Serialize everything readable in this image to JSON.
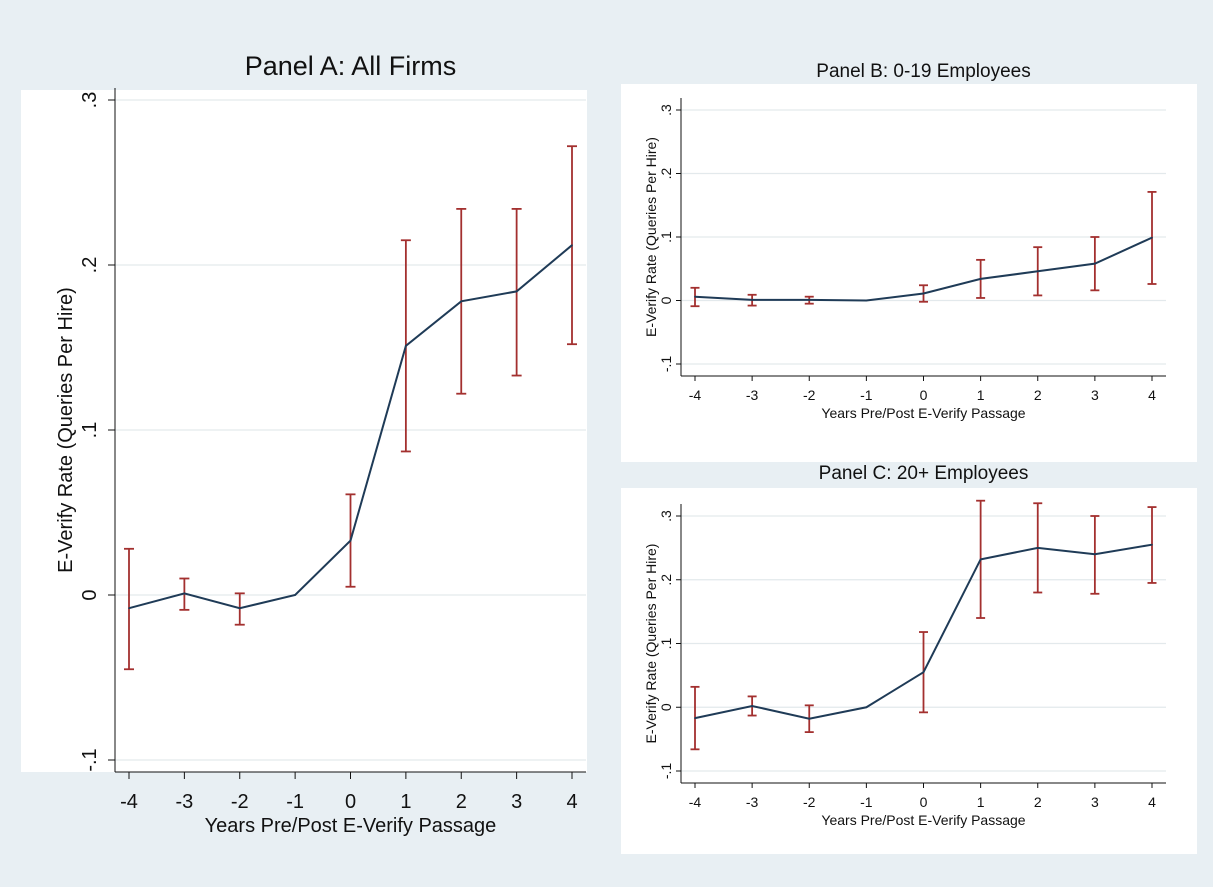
{
  "chart_data": [
    {
      "type": "line",
      "title": "Panel A: All Firms",
      "xlabel": "Years Pre/Post E-Verify Passage",
      "ylabel": "E-Verify Rate (Queries Per Hire)",
      "x": [
        -4,
        -3,
        -2,
        -1,
        0,
        1,
        2,
        3,
        4
      ],
      "xticks": [
        "-4",
        "-3",
        "-2",
        "-1",
        "0",
        "1",
        "2",
        "3",
        "4"
      ],
      "ylim": [
        -0.1,
        0.3
      ],
      "yticks": [
        -0.1,
        0,
        0.1,
        0.2,
        0.3
      ],
      "ytick_labels": [
        "-.1",
        "0",
        ".1",
        ".2",
        ".3"
      ],
      "grid": true,
      "series": [
        {
          "values": [
            -0.008,
            0.001,
            -0.008,
            0.0,
            0.033,
            0.151,
            0.178,
            0.184,
            0.212
          ],
          "ci_low": [
            -0.045,
            -0.009,
            -0.018,
            0.0,
            0.005,
            0.087,
            0.122,
            0.133,
            0.152
          ],
          "ci_high": [
            0.028,
            0.01,
            0.001,
            0.0,
            0.061,
            0.215,
            0.234,
            0.234,
            0.272
          ],
          "color": "#1f3b57",
          "ci_color": "#a3302f"
        }
      ]
    },
    {
      "type": "line",
      "title": "Panel B: 0-19 Employees",
      "xlabel": "Years Pre/Post E-Verify Passage",
      "ylabel": "E-Verify Rate (Queries Per Hire)",
      "x": [
        -4,
        -3,
        -2,
        -1,
        0,
        1,
        2,
        3,
        4
      ],
      "xticks": [
        "-4",
        "-3",
        "-2",
        "-1",
        "0",
        "1",
        "2",
        "3",
        "4"
      ],
      "ylim": [
        -0.1,
        0.3
      ],
      "yticks": [
        -0.1,
        0,
        0.1,
        0.2,
        0.3
      ],
      "ytick_labels": [
        "-.1",
        "0",
        ".1",
        ".2",
        ".3"
      ],
      "grid": true,
      "series": [
        {
          "values": [
            0.006,
            0.001,
            0.001,
            0.0,
            0.011,
            0.034,
            0.046,
            0.058,
            0.099
          ],
          "ci_low": [
            -0.009,
            -0.008,
            -0.005,
            0.0,
            -0.002,
            0.004,
            0.008,
            0.016,
            0.026
          ],
          "ci_high": [
            0.02,
            0.009,
            0.006,
            0.0,
            0.024,
            0.064,
            0.084,
            0.1,
            0.171
          ],
          "color": "#1f3b57",
          "ci_color": "#a3302f"
        }
      ]
    },
    {
      "type": "line",
      "title": "Panel C: 20+ Employees",
      "xlabel": "Years Pre/Post E-Verify Passage",
      "ylabel": "E-Verify Rate (Queries Per Hire)",
      "x": [
        -4,
        -3,
        -2,
        -1,
        0,
        1,
        2,
        3,
        4
      ],
      "xticks": [
        "-4",
        "-3",
        "-2",
        "-1",
        "0",
        "1",
        "2",
        "3",
        "4"
      ],
      "ylim": [
        -0.1,
        0.3
      ],
      "yticks": [
        -0.1,
        0,
        0.1,
        0.2,
        0.3
      ],
      "ytick_labels": [
        "-.1",
        "0",
        ".1",
        ".2",
        ".3"
      ],
      "grid": true,
      "series": [
        {
          "values": [
            -0.017,
            0.002,
            -0.018,
            0.0,
            0.055,
            0.232,
            0.25,
            0.24,
            0.255
          ],
          "ci_low": [
            -0.066,
            -0.013,
            -0.039,
            0.0,
            -0.008,
            0.14,
            0.18,
            0.178,
            0.195
          ],
          "ci_high": [
            0.032,
            0.017,
            0.003,
            0.0,
            0.118,
            0.324,
            0.32,
            0.3,
            0.314
          ],
          "color": "#1f3b57",
          "ci_color": "#a3302f"
        }
      ]
    }
  ]
}
